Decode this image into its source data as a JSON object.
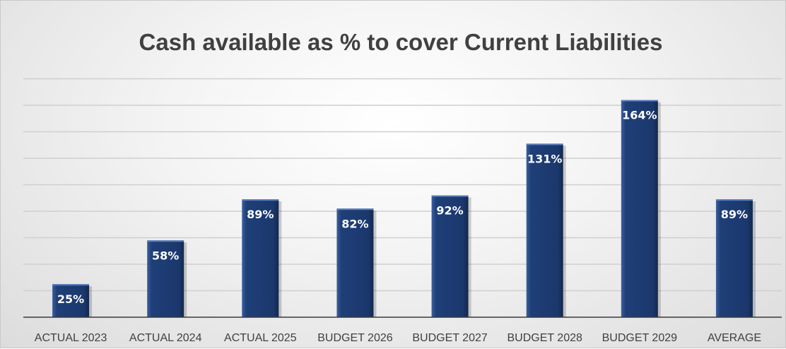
{
  "chart_data": {
    "type": "bar",
    "title": "Cash available as % to cover Current Liabilities",
    "xlabel": "",
    "ylabel": "",
    "categories": [
      "ACTUAL 2023",
      "ACTUAL 2024",
      "ACTUAL 2025",
      "BUDGET 2026",
      "BUDGET 2027",
      "BUDGET 2028",
      "BUDGET 2029",
      "AVERAGE"
    ],
    "values": [
      25,
      58,
      89,
      82,
      92,
      131,
      164,
      89
    ],
    "data_labels": [
      "25%",
      "58%",
      "89%",
      "82%",
      "92%",
      "131%",
      "164%",
      "89%"
    ],
    "ylim": [
      0,
      180
    ],
    "grid": true,
    "legend": "none",
    "bar_color": "#1f3f78"
  }
}
